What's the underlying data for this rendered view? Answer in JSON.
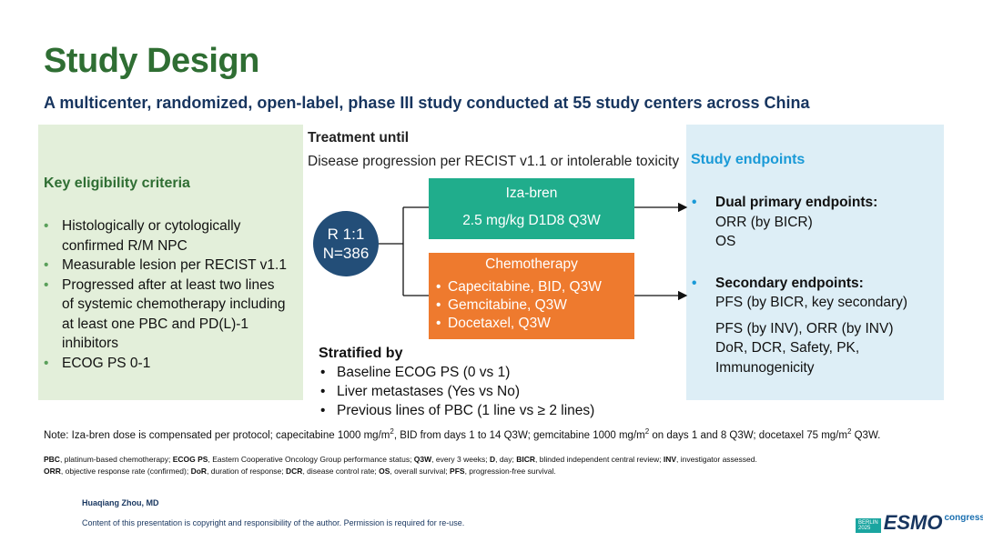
{
  "header": {
    "title": "Study Design",
    "subtitle": "A multicenter, randomized, open-label, phase III study conducted at 55 study centers across China"
  },
  "eligibility": {
    "heading": "Key eligibility criteria",
    "items": [
      "Histologically or cytologically confirmed R/M NPC",
      "Measurable lesion per RECIST v1.1",
      "Progressed after at least two lines of systemic chemotherapy including at least one PBC and PD(L)-1 inhibitors",
      "ECOG  PS 0-1"
    ]
  },
  "treatment": {
    "heading": "Treatment until",
    "text": "Disease progression per RECIST v1.1 or intolerable toxicity"
  },
  "randomization": {
    "ratio": "R 1:1",
    "n": "N=386"
  },
  "arms": [
    {
      "name": "Iza-bren",
      "items": [
        "2.5 mg/kg D1D8 Q3W"
      ]
    },
    {
      "name": "Chemotherapy",
      "items": [
        "Capecitabine, BID, Q3W",
        "Gemcitabine, Q3W",
        "Docetaxel, Q3W"
      ]
    }
  ],
  "stratification": {
    "heading": "Stratified by",
    "items": [
      "Baseline ECOG PS (0 vs 1)",
      "Liver metastases (Yes vs No)",
      "Previous lines of PBC (1 line vs ≥ 2 lines)"
    ]
  },
  "endpoints": {
    "heading": "Study endpoints",
    "primary": {
      "label": "Dual primary endpoints:",
      "items": [
        "ORR (by BICR)",
        "OS"
      ]
    },
    "secondary": {
      "label": "Secondary endpoints:",
      "items": [
        "PFS (by BICR, key secondary)",
        "PFS (by INV), ORR (by INV)",
        "DoR, DCR, Safety, PK,",
        "Immunogenicity"
      ]
    }
  },
  "note": [
    "Note: Iza-bren dose is compensated per protocol; capecitabine 1000 mg/m",
    "2",
    ", BID from days 1 to 14 Q3W; gemcitabine 1000 mg/m",
    "2",
    " on days 1 and 8 Q3W; docetaxel 75 mg/m",
    "2",
    " Q3W."
  ],
  "abbreviations": [
    [
      {
        "term": "PBC",
        "text": ", platinum-based chemotherapy; "
      },
      {
        "term": "ECOG PS",
        "text": ", Eastern Cooperative Oncology Group performance status; "
      },
      {
        "term": "Q3W",
        "text": ", every 3 weeks; "
      },
      {
        "term": "D",
        "text": ", day; "
      },
      {
        "term": "BICR",
        "text": ", blinded independent central review; "
      },
      {
        "term": "INV",
        "text": ", investigator assessed."
      }
    ],
    [
      {
        "term": "ORR",
        "text": ", objective response rate (confirmed); "
      },
      {
        "term": "DoR",
        "text": ", duration of response; "
      },
      {
        "term": "DCR",
        "text": ", disease control rate; "
      },
      {
        "term": "OS",
        "text": ", overall survival; "
      },
      {
        "term": "PFS",
        "text": ", progression-free survival."
      }
    ]
  ],
  "footer": {
    "author": "Huaqiang Zhou, MD",
    "copyright": "Content of this presentation is copyright and responsibility of the author. Permission is required for re-use.",
    "logo": {
      "city": "BERLIN",
      "year": "2025",
      "brand": "ESMO",
      "event": "congress"
    }
  }
}
